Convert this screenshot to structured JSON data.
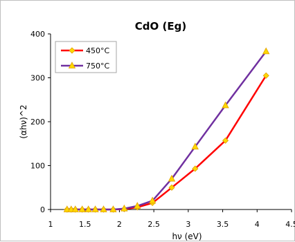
{
  "chart_data": {
    "type": "line",
    "title": "CdO (Eg)",
    "xlabel": "hν (eV)",
    "ylabel": "(αhν)^2",
    "xlim": [
      1,
      4.5
    ],
    "ylim": [
      0,
      400
    ],
    "x_ticks": [
      "1",
      "1.5",
      "2",
      "2.5",
      "3",
      "3.5",
      "4",
      "4.5"
    ],
    "y_ticks": [
      "0",
      "100",
      "200",
      "300",
      "400"
    ],
    "grid": false,
    "legend_position": "top-left",
    "series": [
      {
        "name": "450°C",
        "color": "#ff0000",
        "marker": "diamond",
        "x": [
          1.24,
          1.3,
          1.36,
          1.46,
          1.55,
          1.65,
          1.77,
          1.91,
          2.07,
          2.26,
          2.48,
          2.76,
          3.1,
          3.54,
          4.13
        ],
        "y": [
          0,
          0,
          0,
          0,
          0,
          0,
          0,
          0,
          1,
          5,
          15,
          50,
          93,
          157,
          305
        ]
      },
      {
        "name": "750°C",
        "color": "#7030a0",
        "marker": "triangle",
        "x": [
          1.24,
          1.3,
          1.36,
          1.46,
          1.55,
          1.65,
          1.77,
          1.91,
          2.07,
          2.26,
          2.48,
          2.76,
          3.1,
          3.54,
          4.13
        ],
        "y": [
          0,
          0,
          0,
          0,
          0,
          0,
          0,
          0,
          2,
          8,
          20,
          70,
          143,
          237,
          360
        ]
      }
    ]
  }
}
